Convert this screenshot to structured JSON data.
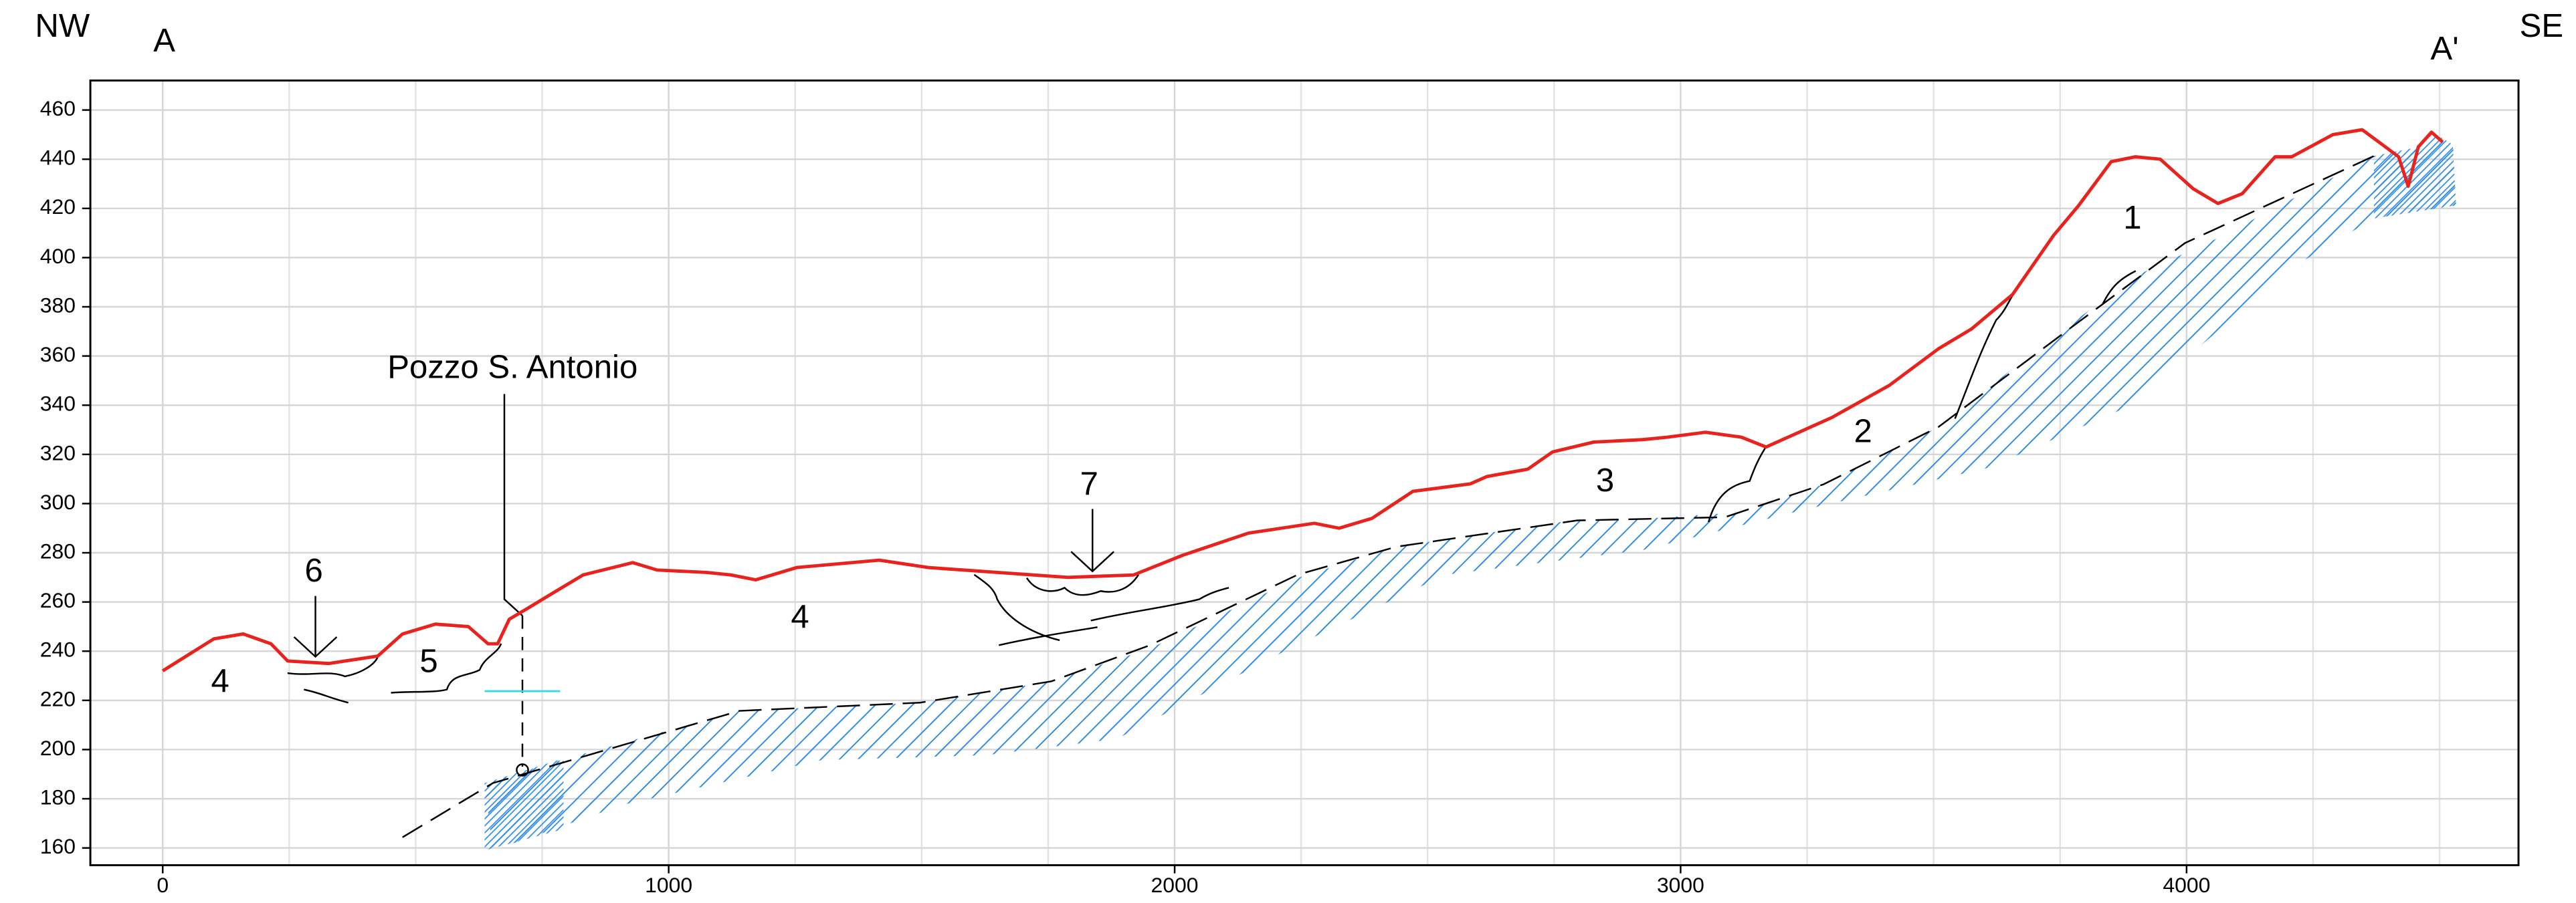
{
  "chart_data": {
    "type": "line",
    "annotations": [
      "NW",
      "SE",
      "A",
      "A'",
      "Pozzo S. Antonio",
      "6",
      "4",
      "5",
      "4",
      "7",
      "3",
      "2",
      "1"
    ],
    "x": [
      0,
      101,
      159,
      214,
      247,
      328,
      425,
      474,
      539,
      604,
      643,
      662,
      685,
      718,
      766,
      831,
      929,
      977,
      1075,
      1123,
      1172,
      1253,
      1416,
      1513,
      1789,
      1919,
      2016,
      2146,
      2276,
      2325,
      2390,
      2471,
      2584,
      2617,
      2698,
      2747,
      2828,
      2925,
      2974,
      3049,
      3120,
      3169,
      3299,
      3412,
      3510,
      3575,
      3656,
      3737,
      3786,
      3851,
      3899,
      3948,
      4013,
      4062,
      4110,
      4175,
      4208,
      4289,
      4347,
      4393,
      4419,
      4438,
      4458,
      4484,
      4506
    ],
    "series": [
      {
        "color": "#e8231e",
        "values": [
          232,
          245,
          247,
          243,
          236,
          235,
          238,
          247,
          251,
          250,
          243,
          243,
          253,
          257,
          263,
          271,
          276,
          273,
          272,
          271,
          269,
          274,
          277,
          274,
          270,
          271,
          279,
          288,
          292,
          290,
          294,
          305,
          308,
          311,
          314,
          321,
          325,
          326,
          327,
          329,
          327,
          323,
          335,
          348,
          363,
          371,
          385,
          409,
          421,
          439,
          441,
          440,
          428,
          422,
          426,
          441,
          441,
          450,
          452,
          445,
          441,
          429,
          445,
          451,
          447
        ]
      }
    ],
    "xlim": [
      -143,
      4656
    ],
    "ylim": [
      153,
      472
    ],
    "xticks": [
      0,
      1000,
      2000,
      3000,
      4000
    ],
    "x_minor_ticks": [
      250,
      500,
      750,
      1250,
      1500,
      1750,
      2250,
      2500,
      2750,
      3250,
      3500,
      3750,
      4250,
      4500
    ],
    "yticks": [
      160,
      180,
      200,
      220,
      240,
      260,
      280,
      300,
      320,
      340,
      360,
      380,
      400,
      420,
      440,
      460
    ],
    "grid": true
  }
}
